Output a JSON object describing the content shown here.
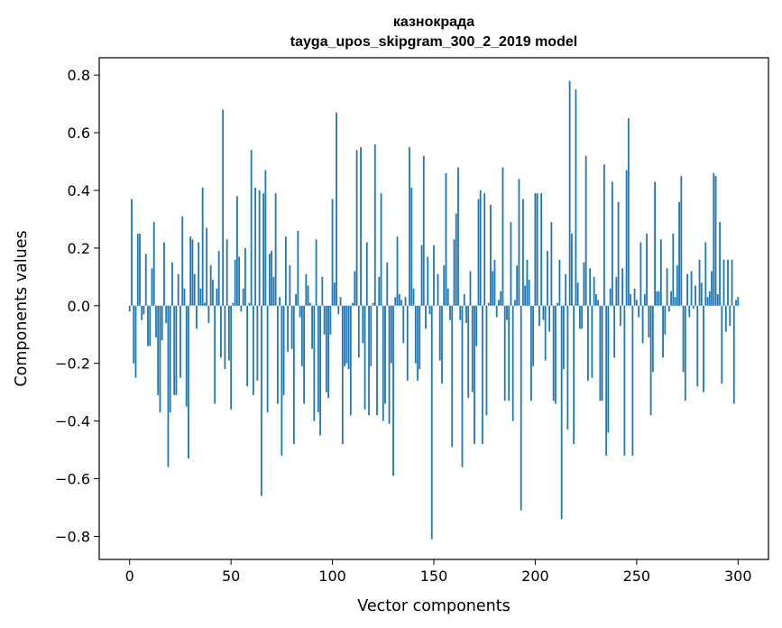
{
  "chart_data": {
    "type": "bar",
    "title": "казнокрада",
    "subtitle": "tayga_upos_skipgram_300_2_2019 model",
    "xlabel": "Vector components",
    "ylabel": "Components values",
    "xlim": [
      -15,
      315
    ],
    "ylim": [
      -0.88,
      0.86
    ],
    "xticks": [
      0,
      50,
      100,
      150,
      200,
      250,
      300
    ],
    "yticks": [
      -0.8,
      -0.6,
      -0.4,
      -0.2,
      0.0,
      0.2,
      0.4,
      0.6,
      0.8
    ],
    "ytick_labels": [
      "−0.8",
      "−0.6",
      "−0.4",
      "−0.2",
      "0.0",
      "0.2",
      "0.4",
      "0.6",
      "0.8"
    ],
    "bar_color": "#1f77b4",
    "grid": false,
    "legend": "none",
    "values": [
      -0.02,
      0.37,
      -0.2,
      -0.25,
      0.25,
      0.25,
      -0.05,
      -0.03,
      0.18,
      -0.14,
      -0.14,
      0.13,
      0.29,
      -0.11,
      -0.31,
      -0.37,
      -0.12,
      0.22,
      -0.06,
      -0.56,
      -0.37,
      0.15,
      -0.31,
      -0.31,
      0.11,
      -0.25,
      0.31,
      0.06,
      -0.35,
      -0.53,
      0.24,
      0.23,
      0.11,
      -0.08,
      0.22,
      0.06,
      0.41,
      0.01,
      0.27,
      -0.06,
      0.14,
      0.09,
      -0.34,
      0.06,
      0.19,
      -0.18,
      0.68,
      -0.22,
      0.23,
      -0.19,
      -0.36,
      0.01,
      0.16,
      0.38,
      0.17,
      -0.02,
      0.06,
      0.2,
      -0.28,
      0.01,
      0.54,
      -0.31,
      0.41,
      -0.26,
      0.4,
      -0.66,
      0.39,
      0.47,
      -0.37,
      0.18,
      0.19,
      0.1,
      0.39,
      -0.34,
      0.03,
      -0.52,
      -0.31,
      0.24,
      -0.16,
      0.14,
      -0.15,
      -0.48,
      0.04,
      0.26,
      -0.04,
      -0.21,
      -0.34,
      0.11,
      0.07,
      0.01,
      -0.15,
      -0.4,
      0.23,
      -0.37,
      -0.45,
      0.1,
      -0.1,
      -0.3,
      -0.32,
      -0.1,
      0.37,
      0.08,
      0.67,
      -0.03,
      0.03,
      -0.48,
      -0.21,
      -0.2,
      -0.22,
      -0.38,
      0.01,
      0.12,
      0.54,
      -0.18,
      0.55,
      -0.13,
      -0.36,
      0.22,
      -0.38,
      -0.21,
      0.01,
      0.56,
      -0.38,
      0.1,
      0.39,
      -0.4,
      -0.34,
      0.15,
      -0.41,
      -0.2,
      -0.59,
      0.03,
      0.24,
      0.04,
      0.02,
      -0.13,
      0.03,
      -0.26,
      0.55,
      0.41,
      0.06,
      -0.2,
      -0.26,
      -0.22,
      0.21,
      0.52,
      -0.08,
      0.17,
      -0.03,
      -0.81,
      0.21,
      0.0,
      0.11,
      -0.19,
      -0.27,
      0.14,
      0.46,
      0.06,
      -0.05,
      -0.49,
      0.23,
      0.32,
      0.48,
      -0.05,
      -0.56,
      0.04,
      -0.06,
      -0.32,
      0.12,
      -0.3,
      -0.48,
      -0.14,
      0.37,
      0.4,
      -0.48,
      0.39,
      -0.38,
      0.01,
      0.35,
      0.12,
      0.16,
      -0.04,
      0.02,
      0.05,
      0.48,
      -0.33,
      -0.05,
      -0.33,
      0.29,
      -0.4,
      0.02,
      0.14,
      0.44,
      -0.71,
      0.37,
      0.07,
      0.16,
      0.09,
      -0.33,
      -0.21,
      0.39,
      0.39,
      -0.07,
      0.39,
      -0.05,
      -0.19,
      0.19,
      -0.09,
      0.29,
      -0.33,
      -0.34,
      0.01,
      0.16,
      -0.74,
      -0.22,
      0.11,
      -0.43,
      0.78,
      0.25,
      -0.48,
      0.75,
      0.08,
      -0.08,
      -0.08,
      0.15,
      0.52,
      -0.26,
      0.13,
      -0.25,
      0.1,
      0.04,
      0.02,
      -0.33,
      -0.33,
      0.49,
      -0.52,
      -0.44,
      0.06,
      0.43,
      -0.18,
      0.1,
      0.36,
      -0.07,
      0.13,
      -0.52,
      0.47,
      0.65,
      0.04,
      -0.52,
      0.06,
      0.02,
      -0.04,
      0.22,
      -0.13,
      0.04,
      0.25,
      -0.11,
      -0.38,
      -0.23,
      0.43,
      0.05,
      0.05,
      0.23,
      -0.18,
      -0.1,
      0.13,
      -0.02,
      0.05,
      0.25,
      0.03,
      0.14,
      0.36,
      0.45,
      -0.23,
      -0.33,
      0.11,
      -0.04,
      0.12,
      -0.01,
      0.07,
      -0.28,
      0.16,
      0.08,
      -0.3,
      0.22,
      0.03,
      0.05,
      0.12,
      0.46,
      0.45,
      0.04,
      0.29,
      -0.27,
      0.16,
      -0.09,
      0.16,
      -0.07,
      0.16,
      -0.34,
      0.02,
      0.03
    ]
  }
}
